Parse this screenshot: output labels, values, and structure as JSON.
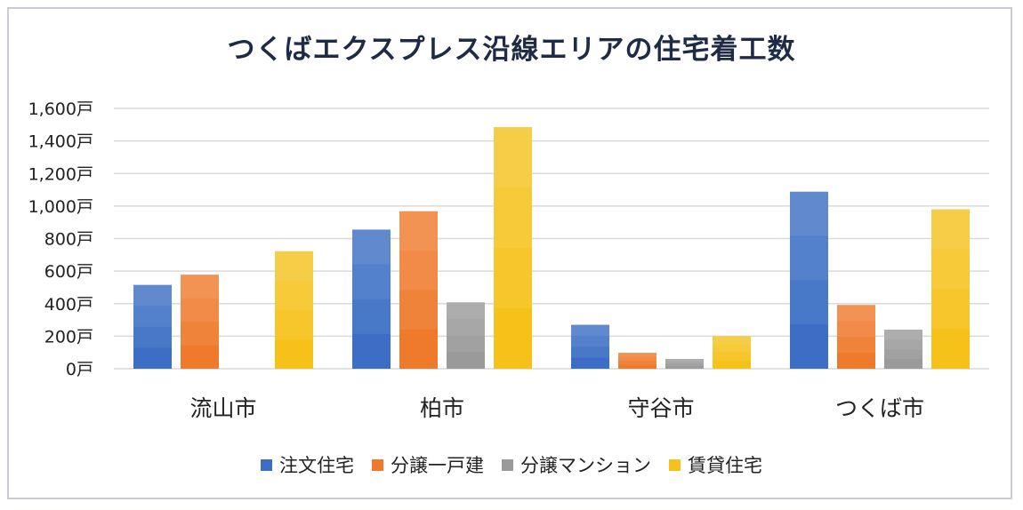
{
  "chart_data": {
    "type": "bar",
    "title": "つくばエクスプレス沿線エリアの住宅着工数",
    "categories": [
      "流山市",
      "柏市",
      "守谷市",
      "つくば市"
    ],
    "series": [
      {
        "name": "注文住宅",
        "color": "#3b6ec4",
        "values": [
          515,
          855,
          270,
          1088
        ]
      },
      {
        "name": "分譲一戸建",
        "color": "#ef7a2c",
        "values": [
          578,
          968,
          98,
          392
        ]
      },
      {
        "name": "分譲マンション",
        "color": "#9a9a9a",
        "values": [
          0,
          408,
          60,
          240
        ]
      },
      {
        "name": "賃貸住宅",
        "color": "#f6c21a",
        "values": [
          722,
          1485,
          200,
          980
        ]
      }
    ],
    "ylim": [
      0,
      1600
    ],
    "y_ticks": [
      "0戸",
      "200戸",
      "400戸",
      "600戸",
      "800戸",
      "1,000戸",
      "1,200戸",
      "1,400戸",
      "1,600戸"
    ],
    "legend_position": "bottom",
    "grid": true
  }
}
